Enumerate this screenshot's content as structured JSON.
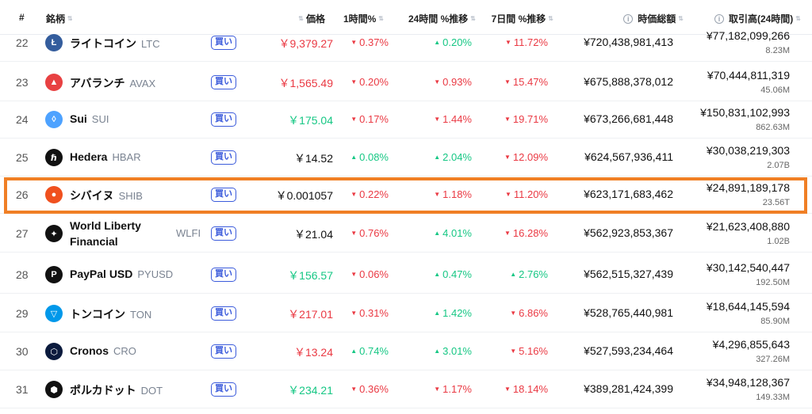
{
  "header": {
    "rank": "#",
    "name": "銘柄",
    "price": "価格",
    "h1": "1時間%",
    "h24": "24時間 %推移",
    "d7": "7日間 %推移",
    "mcap": "時価総額",
    "volume": "取引高(24時間)"
  },
  "buy_label": "買い",
  "colors": {
    "up": "#16c784",
    "down": "#ea3943",
    "buy": "#3b5bdb",
    "highlight": "#f07f25"
  },
  "rows": [
    {
      "rank": "22",
      "name": "ライトコイン",
      "symbol": "LTC",
      "icon": "litecoin-icon",
      "price": "￥9,379.27",
      "price_dir": "down",
      "h1": "0.37%",
      "h1_dir": "down",
      "h24": "0.20%",
      "h24_dir": "up",
      "d7": "11.72%",
      "d7_dir": "down",
      "mcap": "¥720,438,981,413",
      "volume": "¥77,182,099,266",
      "volume_sub": "8.23M"
    },
    {
      "rank": "23",
      "name": "アバランチ",
      "symbol": "AVAX",
      "icon": "avalanche-icon",
      "price": "￥1,565.49",
      "price_dir": "down",
      "h1": "0.20%",
      "h1_dir": "down",
      "h24": "0.93%",
      "h24_dir": "down",
      "d7": "15.47%",
      "d7_dir": "down",
      "mcap": "¥675,888,378,012",
      "volume": "¥70,444,811,319",
      "volume_sub": "45.06M"
    },
    {
      "rank": "24",
      "name": "Sui",
      "symbol": "SUI",
      "icon": "sui-icon",
      "price": "￥175.04",
      "price_dir": "up",
      "h1": "0.17%",
      "h1_dir": "down",
      "h24": "1.44%",
      "h24_dir": "down",
      "d7": "19.71%",
      "d7_dir": "down",
      "mcap": "¥673,266,681,448",
      "volume": "¥150,831,102,993",
      "volume_sub": "862.63M"
    },
    {
      "rank": "25",
      "name": "Hedera",
      "symbol": "HBAR",
      "icon": "hedera-icon",
      "price": "￥14.52",
      "price_dir": "none",
      "h1": "0.08%",
      "h1_dir": "up",
      "h24": "2.04%",
      "h24_dir": "up",
      "d7": "12.09%",
      "d7_dir": "down",
      "mcap": "¥624,567,936,411",
      "volume": "¥30,038,219,303",
      "volume_sub": "2.07B"
    },
    {
      "rank": "26",
      "name": "シバイヌ",
      "symbol": "SHIB",
      "icon": "shiba-inu-icon",
      "price": "￥0.001057",
      "price_dir": "none",
      "h1": "0.22%",
      "h1_dir": "down",
      "h24": "1.18%",
      "h24_dir": "down",
      "d7": "11.20%",
      "d7_dir": "down",
      "mcap": "¥623,171,683,462",
      "volume": "¥24,891,189,178",
      "volume_sub": "23.56T"
    },
    {
      "rank": "27",
      "name": "World Liberty",
      "name2": "Financial",
      "symbol": "WLFI",
      "icon": "world-liberty-icon",
      "price": "￥21.04",
      "price_dir": "none",
      "h1": "0.76%",
      "h1_dir": "down",
      "h24": "4.01%",
      "h24_dir": "up",
      "d7": "16.28%",
      "d7_dir": "down",
      "mcap": "¥562,923,853,367",
      "volume": "¥21,623,408,880",
      "volume_sub": "1.02B"
    },
    {
      "rank": "28",
      "name": "PayPal USD",
      "symbol": "PYUSD",
      "icon": "paypal-icon",
      "price": "￥156.57",
      "price_dir": "up",
      "h1": "0.06%",
      "h1_dir": "down",
      "h24": "0.47%",
      "h24_dir": "up",
      "d7": "2.76%",
      "d7_dir": "up",
      "mcap": "¥562,515,327,439",
      "volume": "¥30,142,540,447",
      "volume_sub": "192.50M"
    },
    {
      "rank": "29",
      "name": "トンコイン",
      "symbol": "TON",
      "icon": "toncoin-icon",
      "price": "￥217.01",
      "price_dir": "down",
      "h1": "0.31%",
      "h1_dir": "down",
      "h24": "1.42%",
      "h24_dir": "up",
      "d7": "6.86%",
      "d7_dir": "down",
      "mcap": "¥528,765,440,981",
      "volume": "¥18,644,145,594",
      "volume_sub": "85.90M"
    },
    {
      "rank": "30",
      "name": "Cronos",
      "symbol": "CRO",
      "icon": "cronos-icon",
      "price": "￥13.24",
      "price_dir": "down",
      "h1": "0.74%",
      "h1_dir": "up",
      "h24": "3.01%",
      "h24_dir": "up",
      "d7": "5.16%",
      "d7_dir": "down",
      "mcap": "¥527,593,234,464",
      "volume": "¥4,296,855,643",
      "volume_sub": "327.26M"
    },
    {
      "rank": "31",
      "name": "ポルカドット",
      "symbol": "DOT",
      "icon": "polkadot-icon",
      "price": "￥234.21",
      "price_dir": "up",
      "h1": "0.36%",
      "h1_dir": "down",
      "h24": "1.17%",
      "h24_dir": "down",
      "d7": "18.14%",
      "d7_dir": "down",
      "mcap": "¥389,281,424,399",
      "volume": "¥34,948,128,367",
      "volume_sub": "149.33M"
    }
  ]
}
